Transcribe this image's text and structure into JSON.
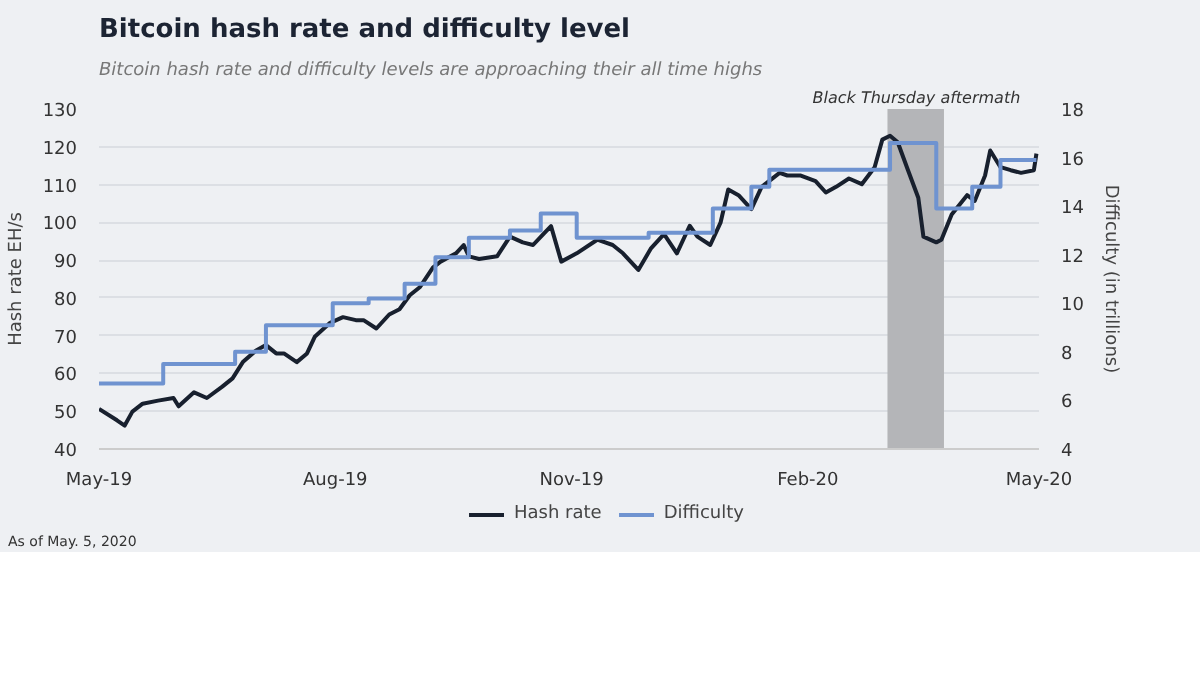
{
  "chart_data": {
    "type": "line",
    "title": "Bitcoin hash rate and difficulty level",
    "subtitle": "Bitcoin hash rate and difficulty levels are approaching their all time highs",
    "ylabel": "Hash rate EH/s",
    "y2label": "Difficulty (in trillions)",
    "xlim": [
      "2019-05-01",
      "2020-05-01"
    ],
    "xticks": [
      {
        "value": "2019-05-01",
        "label": "May-19"
      },
      {
        "value": "2019-08-01",
        "label": "Aug-19"
      },
      {
        "value": "2019-11-01",
        "label": "Nov-19"
      },
      {
        "value": "2020-02-01",
        "label": "Feb-20"
      },
      {
        "value": "2020-05-01",
        "label": "May-20"
      }
    ],
    "ylim": [
      40,
      130
    ],
    "yticks": [
      40,
      50,
      60,
      70,
      80,
      90,
      100,
      110,
      120,
      130
    ],
    "y2lim": [
      4,
      18
    ],
    "y2ticks": [
      4,
      6,
      8,
      10,
      12,
      14,
      16,
      18
    ],
    "grid": "y",
    "legend": "bottom",
    "bands": [
      {
        "axis": "x",
        "from": "2020-03-03",
        "to": "2020-03-25",
        "label": "Black Thursday aftermath",
        "color": "#b4b5b8"
      }
    ],
    "annotations": [
      "As of May. 5, 2020"
    ],
    "series": [
      {
        "name": "Hash rate",
        "color": "#18202e",
        "x": [
          "2019-05-01",
          "2019-05-08",
          "2019-05-11",
          "2019-05-14",
          "2019-05-18",
          "2019-05-24",
          "2019-05-30",
          "2019-06-01",
          "2019-06-07",
          "2019-06-12",
          "2019-06-18",
          "2019-06-22",
          "2019-06-26",
          "2019-07-01",
          "2019-07-05",
          "2019-07-09",
          "2019-07-12",
          "2019-07-17",
          "2019-07-21",
          "2019-07-24",
          "2019-07-30",
          "2019-08-04",
          "2019-08-09",
          "2019-08-12",
          "2019-08-17",
          "2019-08-22",
          "2019-08-26",
          "2019-08-30",
          "2019-09-03",
          "2019-09-08",
          "2019-09-11",
          "2019-09-17",
          "2019-09-20",
          "2019-09-22",
          "2019-09-26",
          "2019-10-03",
          "2019-10-08",
          "2019-10-13",
          "2019-10-17",
          "2019-10-21",
          "2019-10-24",
          "2019-10-28",
          "2019-11-03",
          "2019-11-11",
          "2019-11-17",
          "2019-11-21",
          "2019-11-27",
          "2019-12-02",
          "2019-12-07",
          "2019-12-12",
          "2019-12-17",
          "2019-12-20",
          "2019-12-25",
          "2019-12-29",
          "2020-01-01",
          "2020-01-05",
          "2020-01-10",
          "2020-01-14",
          "2020-01-21",
          "2020-01-24",
          "2020-01-29",
          "2020-02-04",
          "2020-02-08",
          "2020-02-12",
          "2020-02-17",
          "2020-02-22",
          "2020-02-27",
          "2020-03-01",
          "2020-03-04",
          "2020-03-07",
          "2020-03-11",
          "2020-03-15",
          "2020-03-17",
          "2020-03-22",
          "2020-03-24",
          "2020-03-28",
          "2020-04-03",
          "2020-04-06",
          "2020-04-10",
          "2020-04-12",
          "2020-04-16",
          "2020-04-20",
          "2020-04-24",
          "2020-04-29",
          "2020-04-30"
        ],
        "values": [
          50.6,
          47.6,
          46.2,
          49.9,
          52,
          52.8,
          53.5,
          51.3,
          55,
          53.5,
          56.5,
          58.7,
          63,
          66,
          67.5,
          65.3,
          65.3,
          63,
          65.3,
          69.7,
          73.4,
          74.9,
          74.1,
          74.1,
          71.9,
          75.6,
          77,
          80.7,
          82.9,
          88,
          89.6,
          91.8,
          94,
          91,
          90.3,
          91,
          96.2,
          94.7,
          94,
          96.9,
          99,
          89.6,
          91.8,
          95.4,
          94,
          91.8,
          87.4,
          93.2,
          96.9,
          91.8,
          99.1,
          96.2,
          94,
          99.9,
          108.7,
          107.2,
          103.5,
          109.4,
          113.1,
          112.4,
          112.4,
          110.9,
          107.9,
          109.4,
          111.6,
          110.1,
          114.6,
          121.9,
          122.9,
          121.2,
          113.8,
          106.5,
          96.2,
          94.7,
          95.4,
          102.1,
          107.2,
          105.7,
          112.4,
          119,
          114.6,
          113.8,
          113.1,
          113.8,
          118.2
        ]
      },
      {
        "name": "Difficulty",
        "color": "#6f93d0",
        "type": "step",
        "axis": "y2",
        "x": [
          "2019-05-01",
          "2019-05-26",
          "2019-06-23",
          "2019-07-05",
          "2019-07-31",
          "2019-08-14",
          "2019-08-28",
          "2019-09-09",
          "2019-09-22",
          "2019-10-08",
          "2019-10-20",
          "2019-11-03",
          "2019-12-01",
          "2019-12-26",
          "2020-01-10",
          "2020-01-17",
          "2020-03-04",
          "2020-03-22",
          "2020-04-05",
          "2020-04-16",
          "2020-04-30"
        ],
        "values": [
          6.7,
          7.5,
          8.0,
          9.1,
          10.0,
          10.2,
          10.8,
          11.9,
          12.7,
          13.0,
          13.7,
          12.7,
          12.9,
          13.9,
          14.8,
          15.5,
          16.6,
          13.9,
          14.8,
          15.9,
          15.9
        ]
      }
    ]
  }
}
